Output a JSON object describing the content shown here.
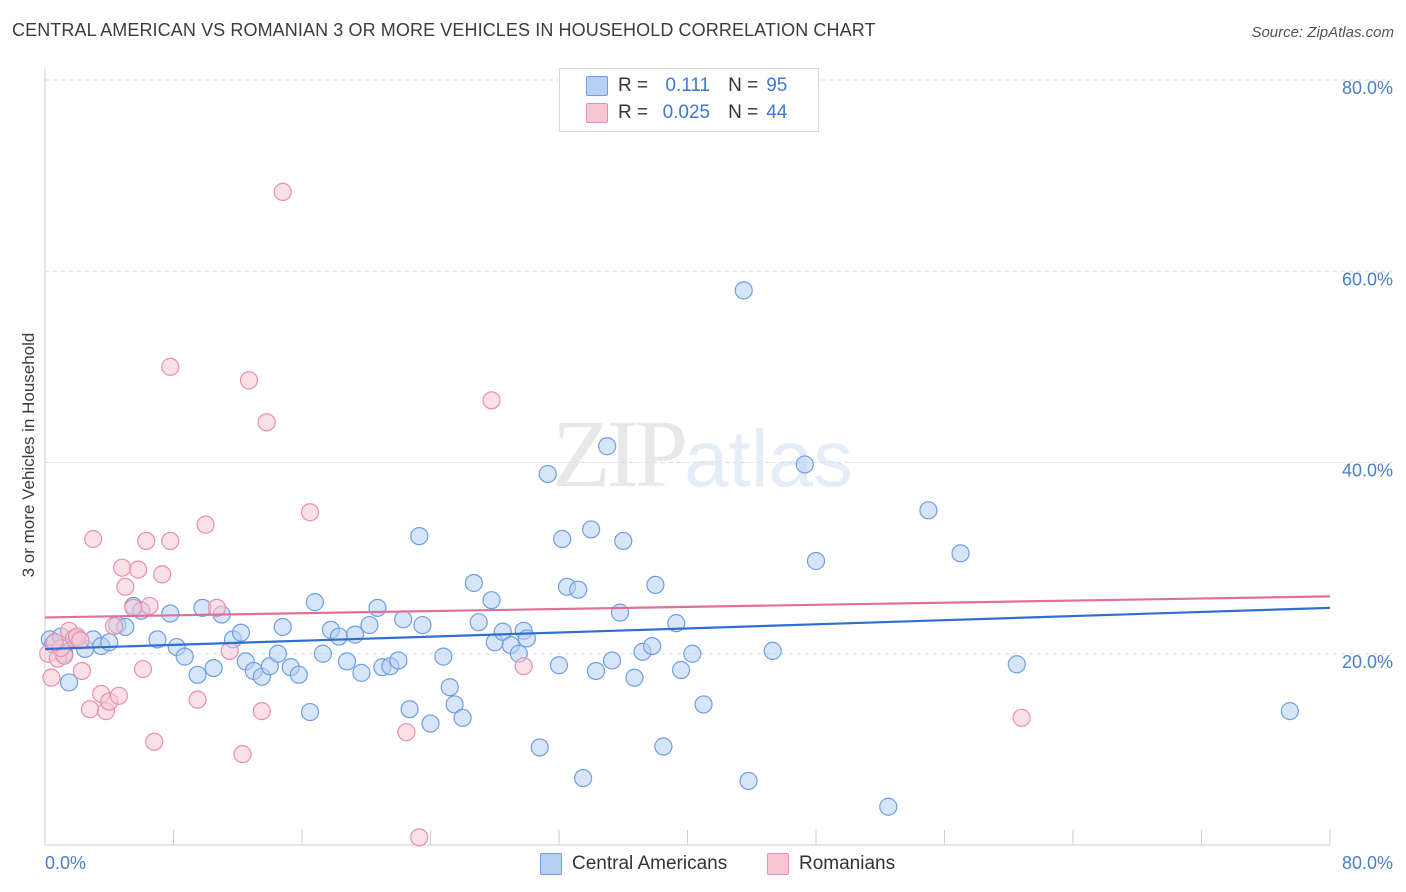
{
  "header": {
    "title": "CENTRAL AMERICAN VS ROMANIAN 3 OR MORE VEHICLES IN HOUSEHOLD CORRELATION CHART",
    "source": "Source: ZipAtlas.com"
  },
  "watermark": {
    "zip": "ZIP",
    "atlas": "atlas"
  },
  "legend": {
    "rows": [
      {
        "r_label": "R =",
        "r_value": "0.111",
        "n_label": "N =",
        "n_value": "95"
      },
      {
        "r_label": "R =",
        "r_value": "0.025",
        "n_label": "N =",
        "n_value": "44"
      }
    ]
  },
  "colors": {
    "blue_fill": "#b7d0f2",
    "blue_stroke": "#6f9fe0",
    "blue_line": "#2f6fd0",
    "pink_fill": "#f8c7d5",
    "pink_stroke": "#ea8fab",
    "pink_line": "#e0709a",
    "grid": "#dddddd",
    "tick_label": "#4a7fc8"
  },
  "chart_data": {
    "type": "scatter",
    "title": "CENTRAL AMERICAN VS ROMANIAN 3 OR MORE VEHICLES IN HOUSEHOLD CORRELATION CHART",
    "xlabel": "",
    "ylabel": "3 or more Vehicles in Household",
    "xlim": [
      0,
      80
    ],
    "ylim": [
      0,
      80
    ],
    "x_tick_labels": [
      "0.0%",
      "80.0%"
    ],
    "y_ticks": [
      20,
      40,
      60,
      80
    ],
    "y_tick_labels": [
      "20.0%",
      "40.0%",
      "60.0%",
      "80.0%"
    ],
    "grid": true,
    "legend_position": "top-center",
    "series": [
      {
        "name": "Central Americans",
        "r": 0.111,
        "n": 95,
        "trend": [
          [
            0,
            20.5
          ],
          [
            80,
            24.8
          ]
        ],
        "points": [
          [
            0.3,
            21.5
          ],
          [
            0.5,
            21.0
          ],
          [
            1.0,
            21.8
          ],
          [
            1.2,
            20.0
          ],
          [
            1.5,
            17.0
          ],
          [
            2.0,
            21.6
          ],
          [
            2.5,
            20.5
          ],
          [
            3.0,
            21.5
          ],
          [
            3.5,
            20.8
          ],
          [
            4.0,
            21.2
          ],
          [
            4.5,
            23.0
          ],
          [
            5.0,
            22.8
          ],
          [
            5.5,
            25.0
          ],
          [
            6.0,
            24.5
          ],
          [
            7.0,
            21.5
          ],
          [
            7.8,
            24.2
          ],
          [
            8.2,
            20.7
          ],
          [
            8.7,
            19.7
          ],
          [
            9.5,
            17.8
          ],
          [
            9.8,
            24.8
          ],
          [
            10.5,
            18.5
          ],
          [
            11.0,
            24.1
          ],
          [
            11.7,
            21.5
          ],
          [
            12.2,
            22.2
          ],
          [
            12.5,
            19.2
          ],
          [
            13.0,
            18.2
          ],
          [
            13.5,
            17.6
          ],
          [
            14.0,
            18.7
          ],
          [
            14.5,
            20.0
          ],
          [
            14.8,
            22.8
          ],
          [
            15.3,
            18.6
          ],
          [
            15.8,
            17.8
          ],
          [
            16.5,
            13.9
          ],
          [
            16.8,
            25.4
          ],
          [
            17.3,
            20.0
          ],
          [
            17.8,
            22.5
          ],
          [
            18.3,
            21.8
          ],
          [
            18.8,
            19.2
          ],
          [
            19.3,
            22.0
          ],
          [
            19.7,
            18.0
          ],
          [
            20.2,
            23.0
          ],
          [
            20.7,
            24.8
          ],
          [
            21.0,
            18.6
          ],
          [
            21.5,
            18.7
          ],
          [
            22.0,
            19.3
          ],
          [
            22.3,
            23.6
          ],
          [
            22.7,
            14.2
          ],
          [
            23.3,
            32.3
          ],
          [
            23.5,
            23.0
          ],
          [
            24.0,
            12.7
          ],
          [
            24.8,
            19.7
          ],
          [
            25.2,
            16.5
          ],
          [
            25.5,
            14.7
          ],
          [
            26.0,
            13.3
          ],
          [
            26.7,
            27.4
          ],
          [
            27.0,
            23.3
          ],
          [
            27.8,
            25.6
          ],
          [
            28.0,
            21.2
          ],
          [
            28.5,
            22.3
          ],
          [
            29.0,
            20.9
          ],
          [
            29.5,
            20.0
          ],
          [
            29.8,
            22.4
          ],
          [
            30.0,
            21.6
          ],
          [
            30.8,
            10.2
          ],
          [
            31.3,
            38.8
          ],
          [
            32.0,
            18.8
          ],
          [
            32.2,
            32.0
          ],
          [
            32.5,
            27.0
          ],
          [
            33.2,
            26.7
          ],
          [
            33.5,
            7.0
          ],
          [
            34.0,
            33.0
          ],
          [
            34.3,
            18.2
          ],
          [
            35.0,
            41.7
          ],
          [
            35.3,
            19.3
          ],
          [
            35.8,
            24.3
          ],
          [
            36.0,
            31.8
          ],
          [
            36.7,
            17.5
          ],
          [
            37.2,
            20.2
          ],
          [
            37.8,
            20.8
          ],
          [
            38.0,
            27.2
          ],
          [
            38.5,
            10.3
          ],
          [
            39.3,
            23.2
          ],
          [
            39.6,
            18.3
          ],
          [
            40.3,
            20.0
          ],
          [
            41.0,
            14.7
          ],
          [
            43.5,
            58.0
          ],
          [
            43.8,
            6.7
          ],
          [
            45.3,
            20.3
          ],
          [
            47.3,
            39.8
          ],
          [
            48.0,
            29.7
          ],
          [
            52.5,
            4.0
          ],
          [
            55.0,
            35.0
          ],
          [
            57.0,
            30.5
          ],
          [
            60.5,
            18.9
          ],
          [
            77.5,
            14.0
          ]
        ]
      },
      {
        "name": "Romanians",
        "r": 0.025,
        "n": 44,
        "trend": [
          [
            0,
            23.8
          ],
          [
            80,
            26.0
          ]
        ],
        "points": [
          [
            0.2,
            20.0
          ],
          [
            0.4,
            17.5
          ],
          [
            0.8,
            19.5
          ],
          [
            1.2,
            19.8
          ],
          [
            1.5,
            22.4
          ],
          [
            1.8,
            21.6
          ],
          [
            2.0,
            21.8
          ],
          [
            2.3,
            18.2
          ],
          [
            2.8,
            14.2
          ],
          [
            3.0,
            32.0
          ],
          [
            3.5,
            15.8
          ],
          [
            3.8,
            14.0
          ],
          [
            4.0,
            15.0
          ],
          [
            4.3,
            22.9
          ],
          [
            4.6,
            15.6
          ],
          [
            4.8,
            29.0
          ],
          [
            5.0,
            27.0
          ],
          [
            5.5,
            24.8
          ],
          [
            5.8,
            28.8
          ],
          [
            6.1,
            18.4
          ],
          [
            6.3,
            31.8
          ],
          [
            6.5,
            25.0
          ],
          [
            6.8,
            10.8
          ],
          [
            7.3,
            28.3
          ],
          [
            7.8,
            31.8
          ],
          [
            7.8,
            50.0
          ],
          [
            9.5,
            15.2
          ],
          [
            10.0,
            33.5
          ],
          [
            10.7,
            24.8
          ],
          [
            11.5,
            20.3
          ],
          [
            12.3,
            9.5
          ],
          [
            12.7,
            48.6
          ],
          [
            13.5,
            14.0
          ],
          [
            13.8,
            44.2
          ],
          [
            14.8,
            68.3
          ],
          [
            16.5,
            34.8
          ],
          [
            22.5,
            11.8
          ],
          [
            23.3,
            0.8
          ],
          [
            27.8,
            46.5
          ],
          [
            29.8,
            18.7
          ],
          [
            60.8,
            13.3
          ],
          [
            2.2,
            21.4
          ],
          [
            1.0,
            20.6
          ],
          [
            0.6,
            21.2
          ]
        ]
      }
    ]
  }
}
